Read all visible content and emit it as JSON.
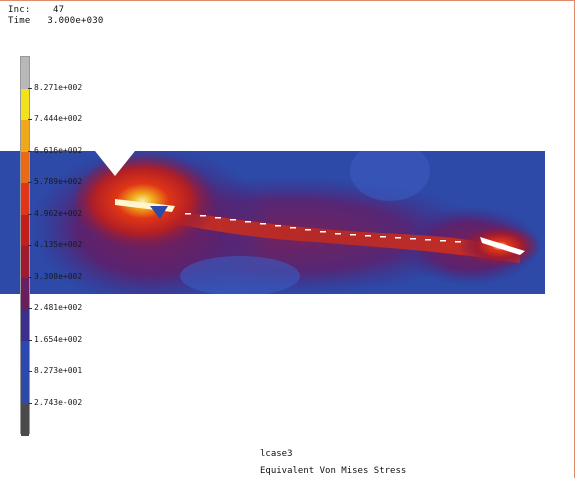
{
  "info": {
    "inc": "Inc:    47",
    "time": "Time   3.000e+030"
  },
  "legend": {
    "values": [
      "8.271e+002",
      "7.444e+002",
      "6.616e+002",
      "5.789e+002",
      "4.962e+002",
      "4.135e+002",
      "3.308e+002",
      "2.481e+002",
      "1.654e+002",
      "8.273e+001",
      "2.743e-002"
    ],
    "colors": [
      "#b8b8b8",
      "#f2e21c",
      "#f0a81a",
      "#ea6a18",
      "#e03516",
      "#c21f1c",
      "#9e1b30",
      "#6a1e5e",
      "#3a2f8c",
      "#2a48b0",
      "#2d4aa8",
      "#4a4a4a"
    ]
  },
  "plot": {
    "band_color": "#2d4aa8",
    "hot_color": "#e03516",
    "peak_color": "#f6f0a0"
  },
  "caption": {
    "case": "lcase3",
    "quantity": "Equivalent Von Mises Stress"
  }
}
